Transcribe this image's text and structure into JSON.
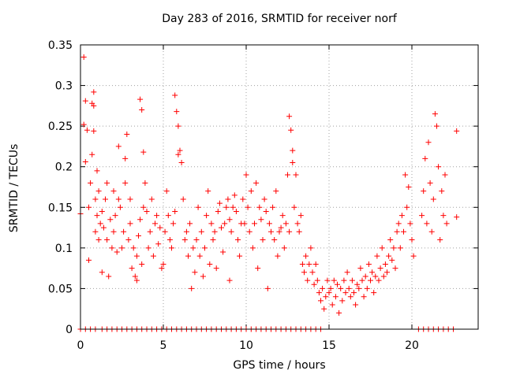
{
  "chart_data": {
    "type": "scatter",
    "title": "Day 283 of 2016, SRMTID for receiver norf",
    "xlabel": "GPS time / hours",
    "ylabel": "SRMTID / TECUs",
    "xlim": [
      0,
      24
    ],
    "ylim": [
      0,
      0.35
    ],
    "xticks": [
      0,
      5,
      10,
      15,
      20
    ],
    "xtick_labels": [
      "0",
      "5",
      "10",
      "15",
      "20"
    ],
    "yticks": [
      0,
      0.05,
      0.1,
      0.15,
      0.2,
      0.25,
      0.3,
      0.35
    ],
    "ytick_labels": [
      "0",
      "0.05",
      "0.1",
      "0.15",
      "0.2",
      "0.25",
      "0.3",
      "0.35"
    ],
    "grid": true,
    "marker": "+",
    "color": "#ff0000",
    "series": [
      {
        "name": "SRMTID",
        "points": [
          [
            0.0,
            0.142
          ],
          [
            0.2,
            0.335
          ],
          [
            0.2,
            0.252
          ],
          [
            0.3,
            0.281
          ],
          [
            0.3,
            0.206
          ],
          [
            0.4,
            0.245
          ],
          [
            0.5,
            0.15
          ],
          [
            0.5,
            0.085
          ],
          [
            0.6,
            0.18
          ],
          [
            0.7,
            0.278
          ],
          [
            0.7,
            0.215
          ],
          [
            0.8,
            0.292
          ],
          [
            0.8,
            0.275
          ],
          [
            0.8,
            0.244
          ],
          [
            0.9,
            0.16
          ],
          [
            0.9,
            0.12
          ],
          [
            1.0,
            0.195
          ],
          [
            1.0,
            0.14
          ],
          [
            1.1,
            0.17
          ],
          [
            1.1,
            0.11
          ],
          [
            1.2,
            0.13
          ],
          [
            1.3,
            0.145
          ],
          [
            1.3,
            0.07
          ],
          [
            1.4,
            0.125
          ],
          [
            1.5,
            0.16
          ],
          [
            1.6,
            0.11
          ],
          [
            1.6,
            0.18
          ],
          [
            1.7,
            0.065
          ],
          [
            1.8,
            0.135
          ],
          [
            1.9,
            0.1
          ],
          [
            2.0,
            0.17
          ],
          [
            2.0,
            0.12
          ],
          [
            2.1,
            0.14
          ],
          [
            2.2,
            0.095
          ],
          [
            2.3,
            0.225
          ],
          [
            2.3,
            0.16
          ],
          [
            2.4,
            0.15
          ],
          [
            2.5,
            0.1
          ],
          [
            2.6,
            0.12
          ],
          [
            2.7,
            0.21
          ],
          [
            2.7,
            0.18
          ],
          [
            2.8,
            0.24
          ],
          [
            2.9,
            0.11
          ],
          [
            3.0,
            0.16
          ],
          [
            3.0,
            0.13
          ],
          [
            3.1,
            0.075
          ],
          [
            3.2,
            0.1
          ],
          [
            3.3,
            0.065
          ],
          [
            3.4,
            0.09
          ],
          [
            3.4,
            0.06
          ],
          [
            3.5,
            0.115
          ],
          [
            3.6,
            0.135
          ],
          [
            3.6,
            0.283
          ],
          [
            3.7,
            0.27
          ],
          [
            3.7,
            0.08
          ],
          [
            3.8,
            0.218
          ],
          [
            3.8,
            0.15
          ],
          [
            3.9,
            0.18
          ],
          [
            4.0,
            0.145
          ],
          [
            4.1,
            0.1
          ],
          [
            4.2,
            0.12
          ],
          [
            4.3,
            0.16
          ],
          [
            4.4,
            0.09
          ],
          [
            4.5,
            0.13
          ],
          [
            4.6,
            0.14
          ],
          [
            4.7,
            0.105
          ],
          [
            4.8,
            0.125
          ],
          [
            4.9,
            0.075
          ],
          [
            5.0,
            0.08
          ],
          [
            5.1,
            0.12
          ],
          [
            5.2,
            0.17
          ],
          [
            5.3,
            0.14
          ],
          [
            5.4,
            0.11
          ],
          [
            5.5,
            0.1
          ],
          [
            5.6,
            0.13
          ],
          [
            5.7,
            0.145
          ],
          [
            5.7,
            0.288
          ],
          [
            5.8,
            0.268
          ],
          [
            5.9,
            0.25
          ],
          [
            5.9,
            0.215
          ],
          [
            6.0,
            0.22
          ],
          [
            6.1,
            0.205
          ],
          [
            6.2,
            0.16
          ],
          [
            6.3,
            0.11
          ],
          [
            6.4,
            0.12
          ],
          [
            6.5,
            0.09
          ],
          [
            6.6,
            0.13
          ],
          [
            6.7,
            0.05
          ],
          [
            6.8,
            0.1
          ],
          [
            6.9,
            0.07
          ],
          [
            7.0,
            0.11
          ],
          [
            7.1,
            0.15
          ],
          [
            7.2,
            0.09
          ],
          [
            7.3,
            0.12
          ],
          [
            7.4,
            0.065
          ],
          [
            7.5,
            0.1
          ],
          [
            7.6,
            0.14
          ],
          [
            7.7,
            0.17
          ],
          [
            7.8,
            0.08
          ],
          [
            7.9,
            0.13
          ],
          [
            8.0,
            0.11
          ],
          [
            8.1,
            0.12
          ],
          [
            8.2,
            0.075
          ],
          [
            8.3,
            0.145
          ],
          [
            8.4,
            0.155
          ],
          [
            8.5,
            0.125
          ],
          [
            8.6,
            0.095
          ],
          [
            8.7,
            0.13
          ],
          [
            8.8,
            0.15
          ],
          [
            8.9,
            0.16
          ],
          [
            9.0,
            0.135
          ],
          [
            9.0,
            0.06
          ],
          [
            9.1,
            0.12
          ],
          [
            9.2,
            0.15
          ],
          [
            9.3,
            0.165
          ],
          [
            9.4,
            0.145
          ],
          [
            9.5,
            0.11
          ],
          [
            9.6,
            0.09
          ],
          [
            9.7,
            0.13
          ],
          [
            9.8,
            0.16
          ],
          [
            9.9,
            0.13
          ],
          [
            10.0,
            0.19
          ],
          [
            10.1,
            0.15
          ],
          [
            10.2,
            0.12
          ],
          [
            10.3,
            0.17
          ],
          [
            10.4,
            0.1
          ],
          [
            10.5,
            0.13
          ],
          [
            10.6,
            0.18
          ],
          [
            10.7,
            0.075
          ],
          [
            10.8,
            0.15
          ],
          [
            10.9,
            0.135
          ],
          [
            11.0,
            0.11
          ],
          [
            11.1,
            0.16
          ],
          [
            11.2,
            0.145
          ],
          [
            11.3,
            0.05
          ],
          [
            11.4,
            0.13
          ],
          [
            11.5,
            0.12
          ],
          [
            11.6,
            0.15
          ],
          [
            11.7,
            0.11
          ],
          [
            11.8,
            0.17
          ],
          [
            11.9,
            0.09
          ],
          [
            12.0,
            0.12
          ],
          [
            12.1,
            0.125
          ],
          [
            12.2,
            0.14
          ],
          [
            12.3,
            0.1
          ],
          [
            12.4,
            0.13
          ],
          [
            12.5,
            0.19
          ],
          [
            12.6,
            0.12
          ],
          [
            12.6,
            0.262
          ],
          [
            12.7,
            0.245
          ],
          [
            12.8,
            0.22
          ],
          [
            12.8,
            0.205
          ],
          [
            12.9,
            0.15
          ],
          [
            13.0,
            0.19
          ],
          [
            13.1,
            0.13
          ],
          [
            13.2,
            0.12
          ],
          [
            13.3,
            0.14
          ],
          [
            13.4,
            0.08
          ],
          [
            13.5,
            0.07
          ],
          [
            13.6,
            0.09
          ],
          [
            13.7,
            0.06
          ],
          [
            13.8,
            0.08
          ],
          [
            13.9,
            0.1
          ],
          [
            14.0,
            0.07
          ],
          [
            14.1,
            0.055
          ],
          [
            14.2,
            0.08
          ],
          [
            14.3,
            0.06
          ],
          [
            14.4,
            0.045
          ],
          [
            14.5,
            0.035
          ],
          [
            14.6,
            0.05
          ],
          [
            14.7,
            0.025
          ],
          [
            14.8,
            0.04
          ],
          [
            14.9,
            0.06
          ],
          [
            15.0,
            0.045
          ],
          [
            15.1,
            0.05
          ],
          [
            15.2,
            0.03
          ],
          [
            15.3,
            0.06
          ],
          [
            15.4,
            0.04
          ],
          [
            15.5,
            0.055
          ],
          [
            15.6,
            0.02
          ],
          [
            15.7,
            0.05
          ],
          [
            15.8,
            0.035
          ],
          [
            15.9,
            0.06
          ],
          [
            16.0,
            0.045
          ],
          [
            16.1,
            0.07
          ],
          [
            16.2,
            0.05
          ],
          [
            16.3,
            0.04
          ],
          [
            16.4,
            0.06
          ],
          [
            16.5,
            0.045
          ],
          [
            16.6,
            0.03
          ],
          [
            16.7,
            0.055
          ],
          [
            16.8,
            0.05
          ],
          [
            16.9,
            0.075
          ],
          [
            17.0,
            0.06
          ],
          [
            17.1,
            0.04
          ],
          [
            17.2,
            0.065
          ],
          [
            17.3,
            0.05
          ],
          [
            17.4,
            0.08
          ],
          [
            17.5,
            0.06
          ],
          [
            17.6,
            0.07
          ],
          [
            17.7,
            0.045
          ],
          [
            17.8,
            0.065
          ],
          [
            17.9,
            0.09
          ],
          [
            18.0,
            0.06
          ],
          [
            18.1,
            0.075
          ],
          [
            18.2,
            0.1
          ],
          [
            18.3,
            0.065
          ],
          [
            18.4,
            0.08
          ],
          [
            18.5,
            0.07
          ],
          [
            18.6,
            0.09
          ],
          [
            18.7,
            0.11
          ],
          [
            18.8,
            0.085
          ],
          [
            18.9,
            0.1
          ],
          [
            19.0,
            0.075
          ],
          [
            19.1,
            0.12
          ],
          [
            19.2,
            0.13
          ],
          [
            19.3,
            0.1
          ],
          [
            19.4,
            0.14
          ],
          [
            19.5,
            0.12
          ],
          [
            19.6,
            0.19
          ],
          [
            19.7,
            0.15
          ],
          [
            19.8,
            0.175
          ],
          [
            19.9,
            0.13
          ],
          [
            20.0,
            0.11
          ],
          [
            20.1,
            0.09
          ],
          [
            20.6,
            0.14
          ],
          [
            20.7,
            0.17
          ],
          [
            20.8,
            0.21
          ],
          [
            20.9,
            0.13
          ],
          [
            21.0,
            0.23
          ],
          [
            21.1,
            0.18
          ],
          [
            21.2,
            0.12
          ],
          [
            21.3,
            0.16
          ],
          [
            21.4,
            0.265
          ],
          [
            21.5,
            0.25
          ],
          [
            21.6,
            0.2
          ],
          [
            21.7,
            0.11
          ],
          [
            21.8,
            0.17
          ],
          [
            21.9,
            0.14
          ],
          [
            22.0,
            0.19
          ],
          [
            22.1,
            0.13
          ],
          [
            22.7,
            0.244
          ],
          [
            22.7,
            0.138
          ],
          [
            0.0,
            0
          ],
          [
            0.3,
            0
          ],
          [
            0.6,
            0
          ],
          [
            0.9,
            0
          ],
          [
            1.3,
            0
          ],
          [
            1.6,
            0
          ],
          [
            1.9,
            0
          ],
          [
            2.2,
            0
          ],
          [
            2.5,
            0
          ],
          [
            2.8,
            0
          ],
          [
            3.1,
            0
          ],
          [
            3.4,
            0
          ],
          [
            3.7,
            0
          ],
          [
            4.0,
            0
          ],
          [
            4.3,
            0
          ],
          [
            4.6,
            0
          ],
          [
            4.9,
            0
          ],
          [
            5.2,
            0
          ],
          [
            5.5,
            0
          ],
          [
            5.8,
            0
          ],
          [
            6.1,
            0
          ],
          [
            6.4,
            0
          ],
          [
            6.7,
            0
          ],
          [
            7.0,
            0
          ],
          [
            7.3,
            0
          ],
          [
            7.6,
            0
          ],
          [
            7.9,
            0
          ],
          [
            8.2,
            0
          ],
          [
            8.5,
            0
          ],
          [
            8.8,
            0
          ],
          [
            9.1,
            0
          ],
          [
            9.4,
            0
          ],
          [
            9.7,
            0
          ],
          [
            10.0,
            0
          ],
          [
            10.3,
            0
          ],
          [
            10.6,
            0
          ],
          [
            10.9,
            0
          ],
          [
            11.2,
            0
          ],
          [
            11.5,
            0
          ],
          [
            11.8,
            0
          ],
          [
            12.1,
            0
          ],
          [
            12.4,
            0
          ],
          [
            12.7,
            0
          ],
          [
            13.0,
            0
          ],
          [
            13.3,
            0
          ],
          [
            13.6,
            0
          ],
          [
            13.9,
            0
          ],
          [
            14.2,
            0
          ],
          [
            14.5,
            0
          ],
          [
            20.4,
            0
          ],
          [
            20.7,
            0
          ],
          [
            21.0,
            0
          ],
          [
            21.3,
            0
          ],
          [
            21.6,
            0
          ],
          [
            21.9,
            0
          ],
          [
            22.2,
            0
          ],
          [
            22.5,
            0
          ]
        ]
      }
    ]
  }
}
